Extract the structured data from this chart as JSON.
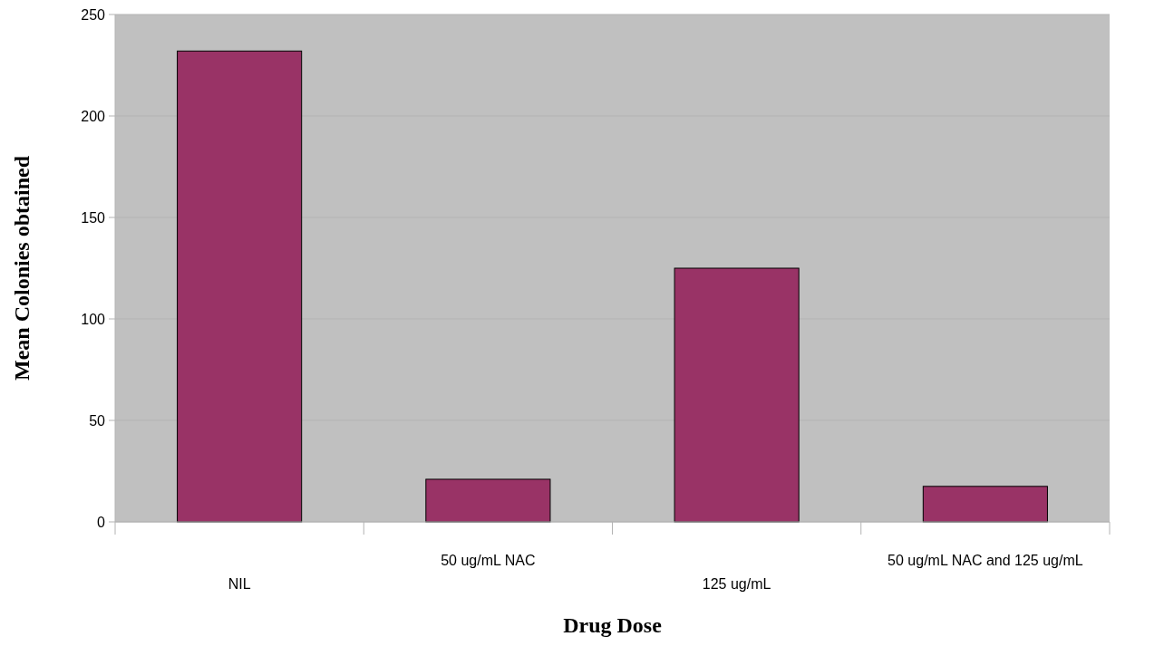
{
  "chart_data": {
    "type": "bar",
    "xlabel": "Drug Dose",
    "ylabel": "Mean Colonies obtained",
    "categories": [
      "NIL",
      "50 ug/mL NAC",
      "125 ug/mL",
      "50 ug/mL NAC and 125 ug/mL"
    ],
    "values": [
      232,
      21,
      125,
      17.5
    ],
    "color": "#993366",
    "ylim": [
      0,
      250
    ],
    "yticks": [
      0,
      50,
      100,
      150,
      200,
      250
    ],
    "grid": "y"
  }
}
